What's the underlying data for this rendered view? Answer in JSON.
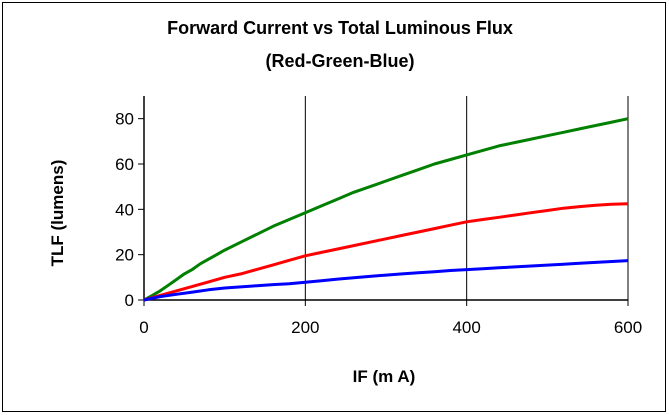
{
  "chart_data": {
    "type": "line",
    "title": "Forward Current vs Total Luminous Flux",
    "subtitle": "(Red-Green-Blue)",
    "xlabel": "IF (m A)",
    "ylabel": "TLF (lumens)",
    "xlim": [
      0,
      600
    ],
    "ylim": [
      0,
      90
    ],
    "xticks": [
      0,
      200,
      400,
      600
    ],
    "yticks": [
      0,
      20,
      40,
      60,
      80
    ],
    "grid": "vertical",
    "legend": "none",
    "series": [
      {
        "color": "#008000",
        "x": [
          0,
          10,
          20,
          30,
          40,
          50,
          60,
          70,
          80,
          90,
          100,
          120,
          140,
          160,
          180,
          200,
          220,
          240,
          260,
          280,
          300,
          320,
          340,
          360,
          380,
          400,
          420,
          440,
          460,
          480,
          500,
          520,
          540,
          560,
          580,
          600
        ],
        "y": [
          0,
          2,
          4,
          6.5,
          9,
          11.5,
          13.5,
          16,
          18,
          20,
          22,
          25.5,
          29,
          32.5,
          35.5,
          38.5,
          41.5,
          44.5,
          47.5,
          50,
          52.5,
          55,
          57.5,
          60,
          62,
          64,
          66,
          68,
          69.5,
          71,
          72.5,
          74,
          75.5,
          77,
          78.5,
          80
        ]
      },
      {
        "color": "#ff0000",
        "x": [
          0,
          20,
          40,
          60,
          80,
          100,
          120,
          140,
          160,
          180,
          200,
          220,
          240,
          260,
          280,
          300,
          320,
          340,
          360,
          380,
          400,
          420,
          440,
          460,
          480,
          500,
          520,
          540,
          560,
          580,
          600
        ],
        "y": [
          0,
          2,
          4,
          6,
          8,
          10,
          11.5,
          13.5,
          15.5,
          17.5,
          19.5,
          21,
          22.5,
          24,
          25.5,
          27,
          28.5,
          30,
          31.5,
          33,
          34.5,
          35.5,
          36.5,
          37.5,
          38.5,
          39.5,
          40.5,
          41.2,
          41.8,
          42.2,
          42.5
        ]
      },
      {
        "color": "#0000ff",
        "x": [
          0,
          20,
          40,
          60,
          80,
          100,
          120,
          140,
          160,
          180,
          200,
          220,
          240,
          260,
          280,
          300,
          320,
          340,
          360,
          380,
          400,
          420,
          440,
          460,
          480,
          500,
          520,
          540,
          560,
          580,
          600
        ],
        "y": [
          0,
          1.5,
          2.5,
          3.5,
          4.5,
          5.3,
          5.8,
          6.3,
          6.8,
          7.2,
          7.8,
          8.5,
          9.2,
          9.8,
          10.4,
          11,
          11.5,
          12,
          12.5,
          13,
          13.4,
          13.8,
          14.2,
          14.6,
          15,
          15.4,
          15.8,
          16.2,
          16.6,
          17,
          17.4
        ]
      }
    ]
  }
}
